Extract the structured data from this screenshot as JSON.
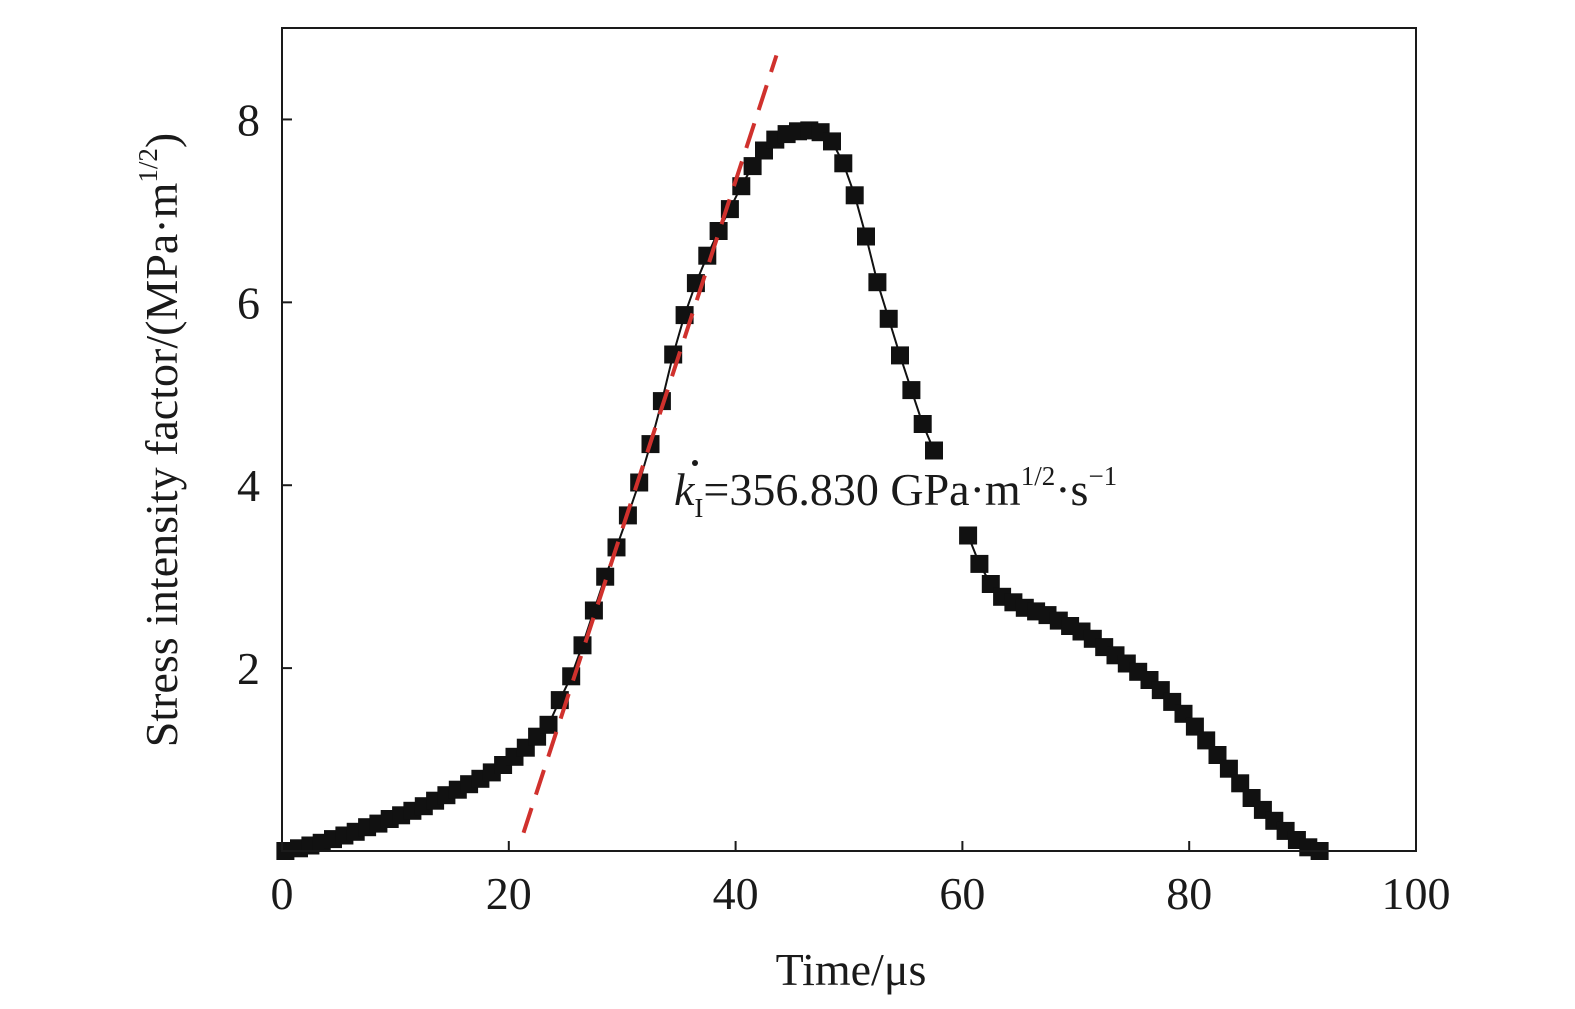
{
  "chart_data": {
    "type": "scatter",
    "xlabel": "Time/μs",
    "ylabel_main": "Stress intensity factor/(MPa·m",
    "ylabel_sup": "1/2",
    "ylabel_close": ")",
    "xlim": [
      0,
      100
    ],
    "ylim": [
      0,
      9
    ],
    "x_ticks": [
      0,
      20,
      40,
      60,
      80,
      100
    ],
    "y_ticks": [
      2,
      4,
      6,
      8
    ],
    "grid": false,
    "annotation": {
      "k": "k",
      "k_sub": "I",
      "value": "=356.830 GPa·m",
      "sup1": "1/2",
      "mid": "·s",
      "sup2": "−1"
    },
    "series": [
      {
        "marker": "square",
        "color": "#111111",
        "x": [
          0.3,
          1.5,
          2.5,
          3.5,
          4.5,
          5.5,
          6.5,
          7.5,
          8.5,
          9.5,
          10.5,
          11.5,
          12.5,
          13.5,
          14.5,
          15.5,
          16.5,
          17.5,
          18.5,
          19.5,
          20.5,
          21.5,
          22.5,
          23.5,
          24.5,
          25.5,
          26.5,
          27.5,
          28.5,
          29.5,
          30.5,
          31.5,
          32.5,
          33.5,
          34.5,
          35.5,
          36.5,
          37.5,
          38.5,
          39.5,
          40.5,
          41.5,
          42.5,
          43.5,
          44.5,
          45.5,
          46.5,
          47.5,
          48.5,
          49.5,
          50.5,
          51.5,
          52.5,
          53.5,
          54.5,
          55.5,
          56.5,
          57.5,
          60.5,
          61.5,
          62.5,
          63.5,
          64.5,
          65.5,
          66.5,
          67.5,
          68.5,
          69.5,
          70.5,
          71.5,
          72.5,
          73.5,
          74.5,
          75.5,
          76.5,
          77.5,
          78.5,
          79.5,
          80.5,
          81.5,
          82.5,
          83.5,
          84.5,
          85.5,
          86.5,
          87.5,
          88.5,
          89.5,
          90.5,
          91.5
        ],
        "y": [
          0.0,
          0.03,
          0.06,
          0.09,
          0.13,
          0.17,
          0.21,
          0.26,
          0.3,
          0.35,
          0.39,
          0.44,
          0.49,
          0.55,
          0.61,
          0.67,
          0.73,
          0.79,
          0.86,
          0.94,
          1.03,
          1.13,
          1.25,
          1.38,
          1.65,
          1.91,
          2.25,
          2.63,
          3.0,
          3.32,
          3.67,
          4.03,
          4.45,
          4.92,
          5.43,
          5.86,
          6.21,
          6.51,
          6.78,
          7.02,
          7.27,
          7.49,
          7.66,
          7.78,
          7.84,
          7.87,
          7.88,
          7.86,
          7.76,
          7.52,
          7.17,
          6.72,
          6.22,
          5.82,
          5.42,
          5.04,
          4.67,
          4.38,
          3.45,
          3.14,
          2.92,
          2.78,
          2.72,
          2.66,
          2.62,
          2.58,
          2.52,
          2.46,
          2.4,
          2.32,
          2.23,
          2.14,
          2.05,
          1.96,
          1.87,
          1.76,
          1.63,
          1.5,
          1.36,
          1.21,
          1.05,
          0.9,
          0.74,
          0.58,
          0.45,
          0.33,
          0.22,
          0.12,
          0.04,
          0.0
        ]
      },
      {
        "style": "dashed",
        "color": "#d0312d",
        "x": [
          21.3,
          43.6
        ],
        "y": [
          0.2,
          8.7
        ]
      }
    ]
  }
}
